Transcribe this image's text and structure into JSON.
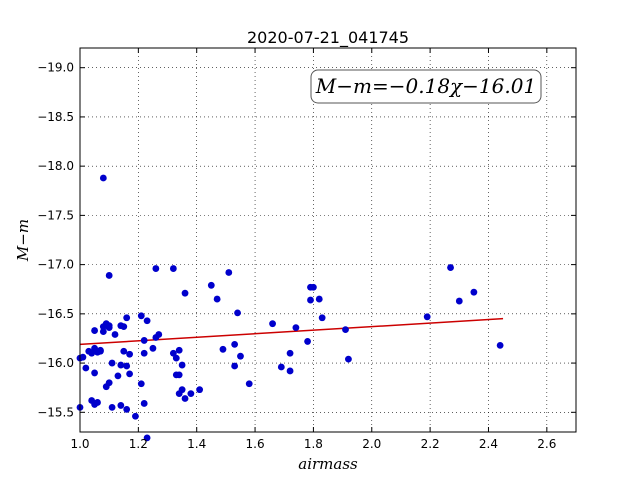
{
  "chart_data": {
    "type": "scatter",
    "title": "2020-07-21_041745",
    "xlabel": "airmass",
    "ylabel": "M−m",
    "xlim": [
      1.0,
      2.7
    ],
    "ylim": [
      -19.2,
      -15.3
    ],
    "y_inverted": true,
    "grid": true,
    "x_ticks": [
      "1.0",
      "1.2",
      "1.4",
      "1.6",
      "1.8",
      "2.0",
      "2.2",
      "2.4",
      "2.6"
    ],
    "y_ticks": [
      "−15.5",
      "−16.0",
      "−16.5",
      "−17.0",
      "−17.5",
      "−18.0",
      "−18.5",
      "−19.0"
    ],
    "annotation": "M−m=−0.18χ−16.01",
    "annotation_placement": "top-right",
    "marker_color": "#0000cc",
    "fit_color": "#cc0000",
    "fit": {
      "slope": -0.18,
      "intercept": -16.01,
      "x_range": [
        1.0,
        2.45
      ]
    },
    "points": [
      [
        1.0,
        -15.55
      ],
      [
        1.0,
        -16.05
      ],
      [
        1.01,
        -16.06
      ],
      [
        1.02,
        -15.95
      ],
      [
        1.03,
        -16.12
      ],
      [
        1.04,
        -16.1
      ],
      [
        1.04,
        -15.62
      ],
      [
        1.05,
        -15.58
      ],
      [
        1.05,
        -15.9
      ],
      [
        1.05,
        -16.15
      ],
      [
        1.05,
        -16.33
      ],
      [
        1.06,
        -16.11
      ],
      [
        1.06,
        -15.6
      ],
      [
        1.07,
        -16.12
      ],
      [
        1.07,
        -16.13
      ],
      [
        1.08,
        -16.37
      ],
      [
        1.08,
        -16.32
      ],
      [
        1.08,
        -17.88
      ],
      [
        1.09,
        -15.76
      ],
      [
        1.09,
        -16.4
      ],
      [
        1.1,
        -16.38
      ],
      [
        1.1,
        -16.36
      ],
      [
        1.1,
        -15.8
      ],
      [
        1.1,
        -16.89
      ],
      [
        1.11,
        -16.0
      ],
      [
        1.11,
        -15.55
      ],
      [
        1.12,
        -16.29
      ],
      [
        1.13,
        -15.87
      ],
      [
        1.14,
        -15.98
      ],
      [
        1.14,
        -16.38
      ],
      [
        1.14,
        -15.57
      ],
      [
        1.15,
        -16.37
      ],
      [
        1.15,
        -16.12
      ],
      [
        1.16,
        -15.97
      ],
      [
        1.16,
        -16.46
      ],
      [
        1.16,
        -15.53
      ],
      [
        1.17,
        -15.89
      ],
      [
        1.17,
        -16.09
      ],
      [
        1.19,
        -15.46
      ],
      [
        1.21,
        -15.79
      ],
      [
        1.21,
        -16.48
      ],
      [
        1.22,
        -15.59
      ],
      [
        1.22,
        -16.1
      ],
      [
        1.22,
        -16.23
      ],
      [
        1.23,
        -15.24
      ],
      [
        1.23,
        -16.43
      ],
      [
        1.25,
        -16.15
      ],
      [
        1.26,
        -16.26
      ],
      [
        1.26,
        -16.96
      ],
      [
        1.27,
        -16.29
      ],
      [
        1.32,
        -16.96
      ],
      [
        1.32,
        -16.1
      ],
      [
        1.33,
        -16.05
      ],
      [
        1.33,
        -15.88
      ],
      [
        1.34,
        -15.69
      ],
      [
        1.34,
        -15.88
      ],
      [
        1.34,
        -16.13
      ],
      [
        1.35,
        -15.98
      ],
      [
        1.35,
        -15.73
      ],
      [
        1.36,
        -15.64
      ],
      [
        1.36,
        -16.71
      ],
      [
        1.38,
        -15.69
      ],
      [
        1.41,
        -15.73
      ],
      [
        1.45,
        -16.79
      ],
      [
        1.47,
        -16.65
      ],
      [
        1.49,
        -16.14
      ],
      [
        1.51,
        -16.92
      ],
      [
        1.53,
        -15.97
      ],
      [
        1.53,
        -16.19
      ],
      [
        1.54,
        -16.51
      ],
      [
        1.55,
        -16.07
      ],
      [
        1.58,
        -15.79
      ],
      [
        1.66,
        -16.4
      ],
      [
        1.69,
        -15.96
      ],
      [
        1.72,
        -15.92
      ],
      [
        1.72,
        -16.1
      ],
      [
        1.74,
        -16.36
      ],
      [
        1.78,
        -16.22
      ],
      [
        1.79,
        -16.64
      ],
      [
        1.79,
        -16.77
      ],
      [
        1.8,
        -16.77
      ],
      [
        1.82,
        -16.65
      ],
      [
        1.83,
        -16.46
      ],
      [
        1.91,
        -16.34
      ],
      [
        1.92,
        -16.04
      ],
      [
        2.19,
        -16.47
      ],
      [
        2.27,
        -16.97
      ],
      [
        2.3,
        -16.63
      ],
      [
        2.35,
        -16.72
      ],
      [
        2.44,
        -16.18
      ]
    ]
  }
}
